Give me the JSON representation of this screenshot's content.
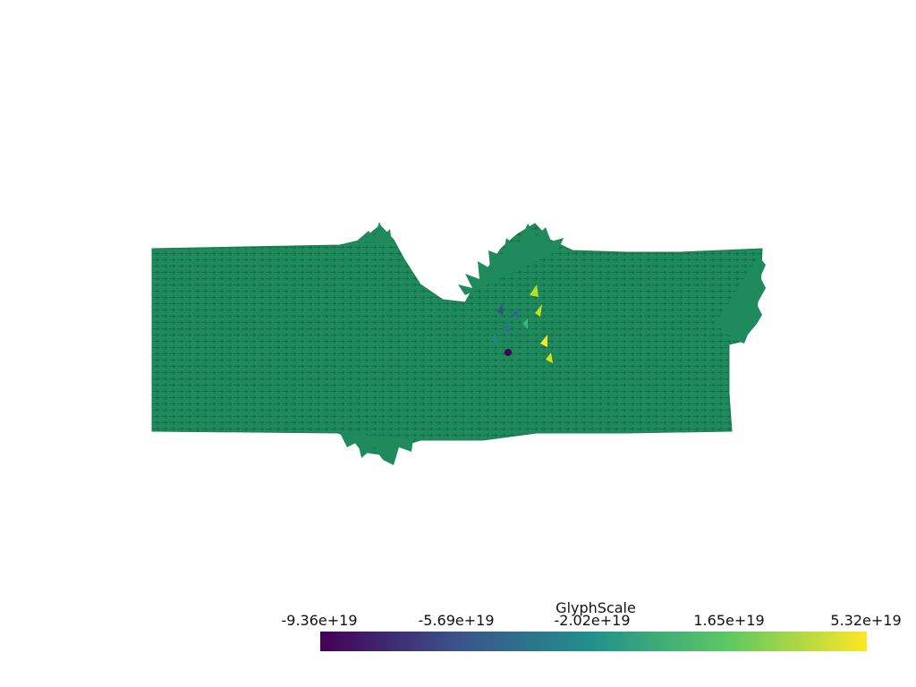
{
  "scene": {
    "description_icon": "vector-glyph-field",
    "glyph_color": "#1f8f5f"
  },
  "scalar_bar": {
    "title": "GlyphScale",
    "ticks": [
      "-9.36e+19",
      "-5.69e+19",
      "-2.02e+19",
      "1.65e+19",
      "5.32e+19"
    ],
    "colormap": "viridis",
    "colors": [
      "#440154",
      "#3b528b",
      "#21918c",
      "#5ec962",
      "#fde725"
    ]
  }
}
